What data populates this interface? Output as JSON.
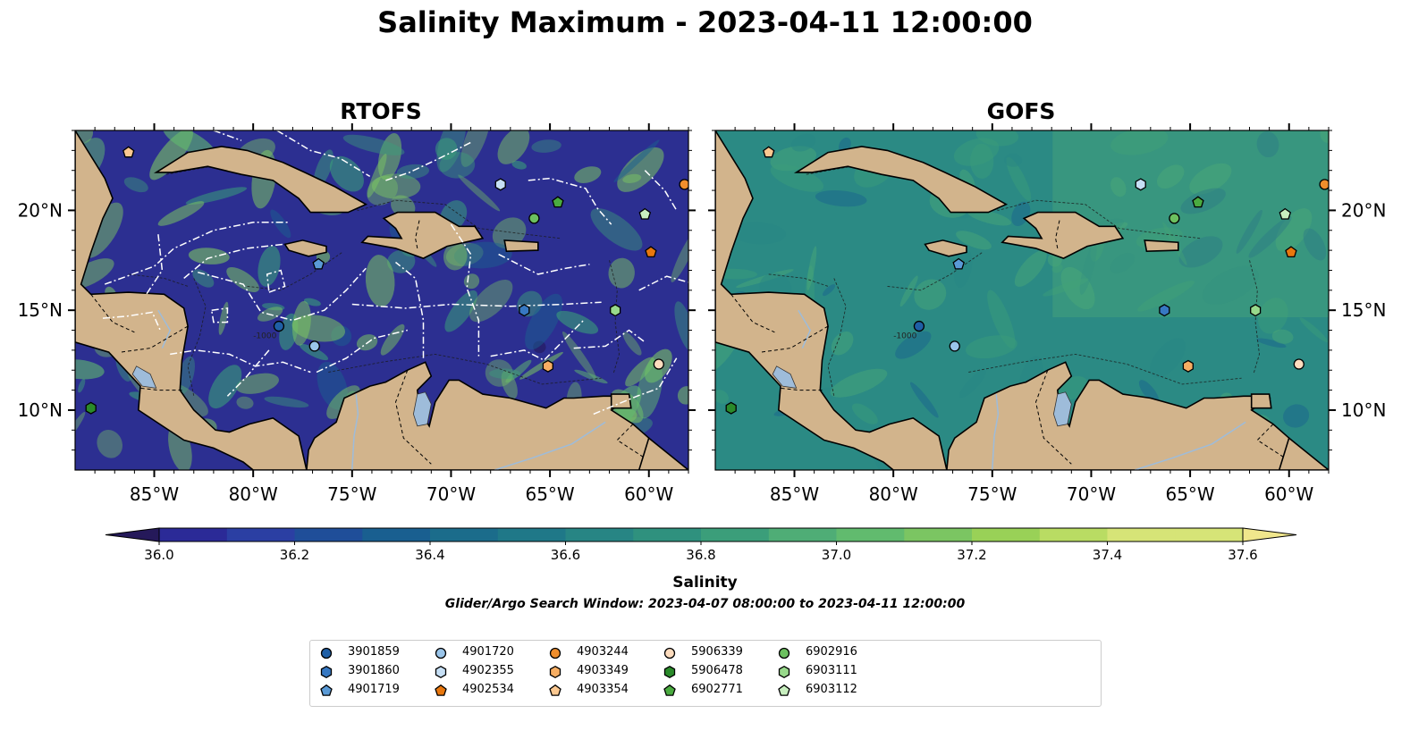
{
  "title": "Salinity Maximum - 2023-04-11 12:00:00",
  "panels": [
    {
      "title": "RTOFS"
    },
    {
      "title": "GOFS"
    }
  ],
  "map": {
    "lon_range": [
      -89,
      -58
    ],
    "lat_range": [
      7,
      24
    ],
    "lon_ticks": [
      "85°W",
      "80°W",
      "75°W",
      "70°W",
      "65°W",
      "60°W"
    ],
    "lat_ticks": [
      "20°N",
      "15°N",
      "10°N"
    ],
    "contour_label": "-1000",
    "colors": {
      "land": "#d2b48c",
      "river": "#9ebcda",
      "eez_line": "#ffffff",
      "rtofs_ocean": "#2c2f91",
      "gofs_ocean": "#2b8a84"
    }
  },
  "colorbar": {
    "label": "Salinity",
    "min": 36.0,
    "max": 37.6,
    "step": 0.1,
    "ticks": [
      "36.0",
      "36.2",
      "36.4",
      "36.6",
      "36.8",
      "37.0",
      "37.2",
      "37.4",
      "37.6"
    ],
    "colors": [
      "#25195a",
      "#2b2a97",
      "#2b3fa3",
      "#1f4e99",
      "#195f90",
      "#1b6c8b",
      "#1f7888",
      "#278584",
      "#2f917e",
      "#3b9e7a",
      "#4fad76",
      "#61bb6e",
      "#7bc562",
      "#99d157",
      "#b9dc63",
      "#d6e477",
      "#f0e68c"
    ]
  },
  "search_window": "Glider/Argo Search Window: 2023-04-07 08:00:00 to 2023-04-11 12:00:00",
  "legend": [
    {
      "id": "3901859",
      "marker": "circle",
      "color": "#1f5fa6"
    },
    {
      "id": "3901860",
      "marker": "hexagon",
      "color": "#3778c2"
    },
    {
      "id": "4901719",
      "marker": "pentagon",
      "color": "#5a9ad6"
    },
    {
      "id": "4901720",
      "marker": "circle",
      "color": "#9ac5ea"
    },
    {
      "id": "4902355",
      "marker": "hexagon",
      "color": "#c6dff5"
    },
    {
      "id": "4902534",
      "marker": "pentagon",
      "color": "#e8770e"
    },
    {
      "id": "4903244",
      "marker": "circle",
      "color": "#f08e2c"
    },
    {
      "id": "4903349",
      "marker": "hexagon",
      "color": "#f7ae63"
    },
    {
      "id": "4903354",
      "marker": "pentagon",
      "color": "#fbc890"
    },
    {
      "id": "5906339",
      "marker": "circle",
      "color": "#fddcbe"
    },
    {
      "id": "5906478",
      "marker": "hexagon",
      "color": "#2a8a2a"
    },
    {
      "id": "6902771",
      "marker": "pentagon",
      "color": "#4aab40"
    },
    {
      "id": "6902916",
      "marker": "circle",
      "color": "#6cc05f"
    },
    {
      "id": "6903111",
      "marker": "hexagon",
      "color": "#98d98b"
    },
    {
      "id": "6903112",
      "marker": "pentagon",
      "color": "#c8efbf"
    }
  ],
  "floats": [
    {
      "id": "3901859",
      "lon": -78.7,
      "lat": 14.2
    },
    {
      "id": "3901860",
      "lon": -66.3,
      "lat": 15.0
    },
    {
      "id": "4901719",
      "lon": -76.7,
      "lat": 17.3
    },
    {
      "id": "4901720",
      "lon": -76.9,
      "lat": 13.2
    },
    {
      "id": "4902355",
      "lon": -67.5,
      "lat": 21.3
    },
    {
      "id": "4902534",
      "lon": -59.9,
      "lat": 17.9
    },
    {
      "id": "4903244",
      "lon": -58.2,
      "lat": 21.3
    },
    {
      "id": "4903349",
      "lon": -65.1,
      "lat": 12.2
    },
    {
      "id": "4903354",
      "lon": -86.3,
      "lat": 22.9
    },
    {
      "id": "5906339",
      "lon": -59.5,
      "lat": 12.3
    },
    {
      "id": "5906478",
      "lon": -88.2,
      "lat": 10.1
    },
    {
      "id": "6902771",
      "lon": -64.6,
      "lat": 20.4
    },
    {
      "id": "6902916",
      "lon": -65.8,
      "lat": 19.6
    },
    {
      "id": "6903111",
      "lon": -61.7,
      "lat": 15.0
    },
    {
      "id": "6903112",
      "lon": -60.2,
      "lat": 19.8
    }
  ]
}
